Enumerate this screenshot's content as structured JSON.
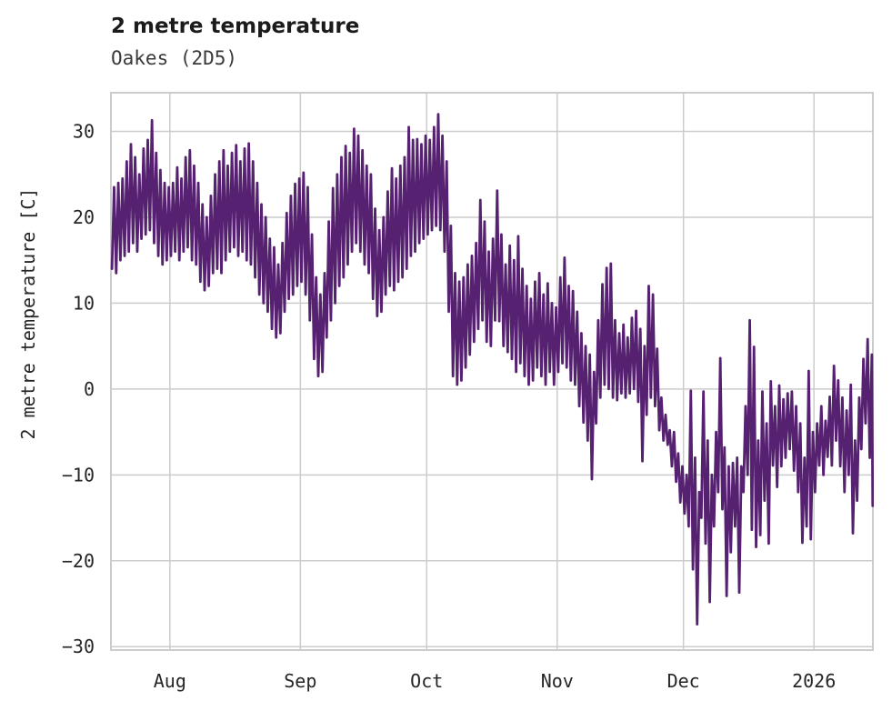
{
  "header": {
    "title": "2 metre temperature",
    "subtitle": "Oakes (2D5)"
  },
  "chart_data": {
    "type": "line",
    "title": "2 metre temperature",
    "subtitle": "Oakes (2D5)",
    "xlabel": "",
    "ylabel": "2 metre temperature [C]",
    "legend": "none",
    "grid": true,
    "line_color": "#562170",
    "grid_color": "#cccccc",
    "tick_text_color": "#262626",
    "x_tick_labels": [
      "Aug",
      "Sep",
      "Oct",
      "Nov",
      "Dec",
      "2026"
    ],
    "x_tick_days": [
      14,
      45,
      75,
      106,
      136,
      167
    ],
    "xlim_days": [
      0,
      181
    ],
    "y_ticks": [
      30,
      20,
      10,
      0,
      -10,
      -20,
      -30
    ],
    "y_tick_labels": [
      "30",
      "20",
      "10",
      "0",
      "−10",
      "−20",
      "−30"
    ],
    "ylim": [
      -30.4,
      34.5
    ],
    "sampling": "daily minimum and maximum envelope read from plot; line alternates min (early day) and max (afternoon), day 0 at left plot edge (about two weeks before the Aug tick)",
    "daily_min": [
      14,
      13.5,
      15,
      15.5,
      16,
      17,
      16,
      17.5,
      18,
      18.5,
      17,
      15.5,
      14.5,
      15,
      15.5,
      16,
      15,
      16,
      16.5,
      15,
      14.5,
      12.5,
      11.5,
      12,
      13.5,
      14,
      13.5,
      15,
      16,
      16.5,
      15.5,
      16,
      15,
      14.5,
      13,
      11,
      10,
      9,
      7,
      6,
      6.5,
      9,
      10.5,
      11,
      12,
      12.5,
      11,
      8,
      3.5,
      1.5,
      2,
      6,
      8,
      10,
      12,
      13,
      14.5,
      16,
      17,
      16,
      14.5,
      13.5,
      10.5,
      8.5,
      9,
      11,
      12,
      11.5,
      12.5,
      13,
      14,
      15.5,
      16,
      17,
      17.5,
      18,
      18.5,
      19,
      18.5,
      16,
      9,
      1.5,
      0.5,
      1,
      2.5,
      4,
      5.5,
      7,
      8,
      5.5,
      5,
      8,
      7.9,
      5,
      4.3,
      3.5,
      2,
      3,
      1.5,
      0.5,
      1,
      2.5,
      1.5,
      0.5,
      2,
      0.5,
      2,
      3,
      2.5,
      1,
      0.5,
      -2,
      -3.9,
      -6,
      -10.5,
      -4,
      -1,
      0.5,
      0,
      -1,
      -1.3,
      -0.5,
      -1,
      -0.5,
      0,
      -1.5,
      -8.4,
      -3,
      -1,
      -2,
      -4.8,
      -6,
      -6.5,
      -9,
      -10.8,
      -13.2,
      -14.5,
      -16,
      -21,
      -27.4,
      -15,
      -18,
      -24.8,
      -16,
      -12,
      -14,
      -24.1,
      -19,
      -16,
      -23.7,
      -12,
      -10,
      -16.4,
      -18.4,
      -17,
      -13,
      -18,
      -8.9,
      -11.4,
      -9,
      -8,
      -7,
      -9.5,
      -12,
      -17.9,
      -16,
      -17.5,
      -12,
      -8.9,
      -10,
      -7.9,
      -8.9,
      -6,
      -9,
      -12,
      -10,
      -16.8,
      -13,
      -7,
      -4,
      -8
    ],
    "daily_max": [
      23.5,
      24,
      24.5,
      26.5,
      28.5,
      27,
      25,
      28,
      29,
      31.3,
      27.5,
      25.5,
      24,
      23.5,
      24,
      25.8,
      24.5,
      27,
      27.8,
      26,
      24,
      21.5,
      20,
      22.5,
      25,
      26.5,
      27.8,
      26,
      27.5,
      28.4,
      26.5,
      28,
      28.6,
      26.5,
      24,
      21.5,
      20,
      17.5,
      16.5,
      14.5,
      17,
      20.5,
      22.5,
      23.9,
      24.5,
      25.2,
      23.5,
      18,
      13,
      11,
      13.5,
      19.5,
      23.4,
      25,
      27,
      28.3,
      27.5,
      30.3,
      29.5,
      27.8,
      26,
      25,
      21,
      18.5,
      20,
      23,
      25.7,
      24.5,
      26,
      27,
      30.5,
      29,
      29.1,
      28.5,
      29.5,
      29,
      30.5,
      32,
      29.5,
      26.5,
      19,
      13.5,
      12.5,
      13,
      14.5,
      15.5,
      17,
      22,
      19.5,
      16,
      17.5,
      23.1,
      18,
      14.5,
      16.7,
      15,
      17.8,
      14,
      12,
      10.5,
      12.5,
      13.5,
      11,
      12.3,
      10,
      9.5,
      13,
      15.3,
      12,
      11.4,
      9,
      6.5,
      5,
      4,
      2,
      8,
      12.2,
      14.1,
      14.6,
      8,
      6.5,
      7.5,
      6,
      8.3,
      9.1,
      7,
      5,
      12,
      11,
      4.7,
      -1,
      -3,
      -4.8,
      -5,
      -7.5,
      -9,
      -10,
      -0.2,
      -8,
      -12,
      -0.3,
      -6,
      -10,
      -5,
      3.6,
      -6.8,
      -9,
      -8.6,
      -8,
      -9,
      -2,
      8,
      4.9,
      -6,
      -0.3,
      -4,
      0.9,
      -2,
      0.4,
      -1.2,
      -0.5,
      -0.3,
      -2,
      -4,
      -8,
      2.1,
      -5,
      -4,
      -2,
      -3.7,
      -0.9,
      2.7,
      1,
      -1,
      -2.5,
      0.5,
      -6,
      -1,
      3.5,
      5.8,
      4
    ],
    "tail_points": [
      [
        180.95,
        -13.6
      ]
    ]
  }
}
